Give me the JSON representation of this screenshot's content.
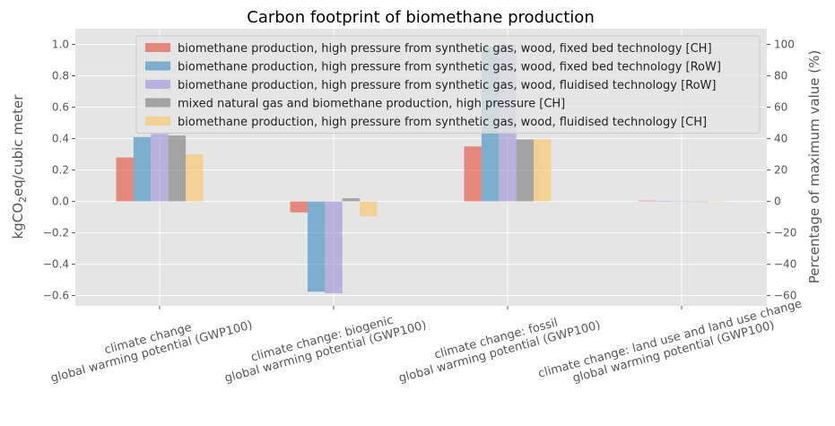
{
  "chart_data": {
    "type": "bar",
    "title": "Carbon footprint of biomethane production",
    "ylabel_left": "kgCO2eq/cubic meter",
    "ylabel_right": "Percentage of maximum value (%)",
    "ylim": [
      -0.665,
      1.1
    ],
    "yticks": [
      -0.6,
      -0.4,
      -0.2,
      0.0,
      0.2,
      0.4,
      0.6,
      0.8,
      1.0
    ],
    "ytick_labels": [
      "−0.6",
      "−0.4",
      "−0.2",
      "0.0",
      "0.2",
      "0.4",
      "0.6",
      "0.8",
      "1.0"
    ],
    "y2lim": [
      -66.5,
      110
    ],
    "y2ticks": [
      -60,
      -40,
      -20,
      0,
      20,
      40,
      60,
      80,
      100
    ],
    "y2tick_labels": [
      "−60",
      "−40",
      "−20",
      "0",
      "20",
      "40",
      "60",
      "80",
      "100"
    ],
    "grid": true,
    "legend_position": "top",
    "categories": [
      [
        "climate change",
        "global warming potential (GWP100)"
      ],
      [
        "climate change: biogenic",
        "global warming potential (GWP100)"
      ],
      [
        "climate change: fossil",
        "global warming potential (GWP100)"
      ],
      [
        "climate change: land use and land use change",
        "global warming potential (GWP100)"
      ]
    ],
    "series": [
      {
        "name": "biomethane production, high pressure from synthetic gas, wood, fixed bed technology [CH]",
        "color": "#e24a33",
        "values": [
          0.28,
          -0.07,
          0.35,
          0.005
        ]
      },
      {
        "name": "biomethane production, high pressure from synthetic gas, wood, fixed bed technology [RoW]",
        "color": "#348abd",
        "values": [
          0.41,
          -0.575,
          0.985,
          0.003
        ]
      },
      {
        "name": "biomethane production, high pressure from synthetic gas, wood, fluidised technology [RoW]",
        "color": "#988ed5",
        "values": [
          0.43,
          -0.585,
          1.0,
          0.003
        ]
      },
      {
        "name": "mixed natural gas and biomethane production, high pressure [CH]",
        "color": "#777777",
        "values": [
          0.42,
          0.02,
          0.395,
          0.0
        ]
      },
      {
        "name": "biomethane production, high pressure from synthetic gas, wood, fluidised technology [CH]",
        "color": "#fbc15e",
        "values": [
          0.3,
          -0.095,
          0.395,
          0.004
        ]
      }
    ]
  }
}
